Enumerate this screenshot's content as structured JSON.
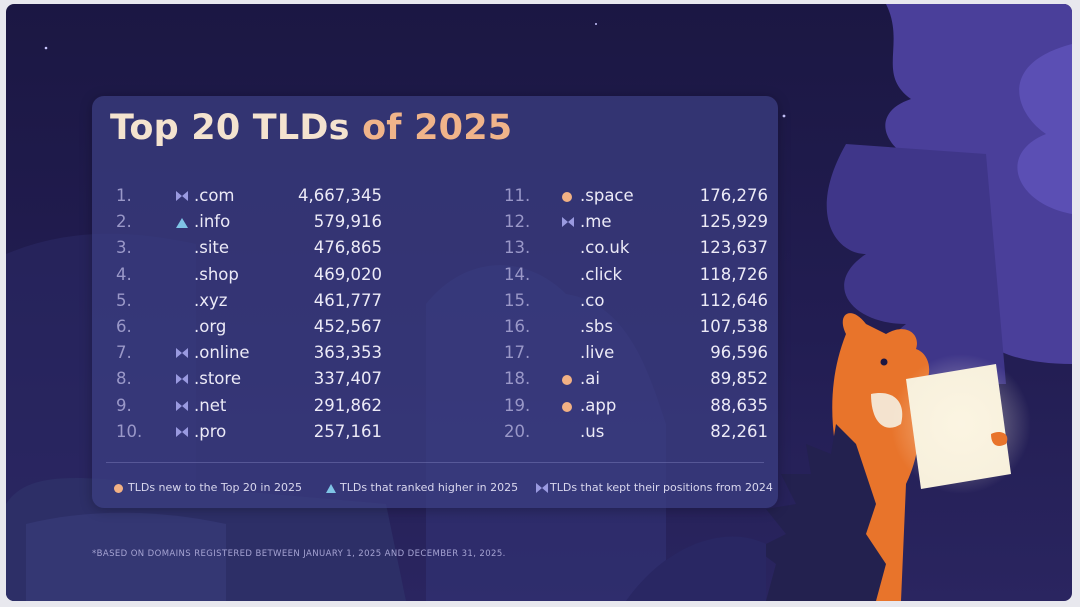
{
  "title": {
    "main": "Top 20 TLDs",
    "accent": "of 2025"
  },
  "ranking_left": [
    {
      "rank": "1.",
      "tld": ".com",
      "count": "4,667,345",
      "marker": "kept-position"
    },
    {
      "rank": "2.",
      "tld": ".info",
      "count": "579,916",
      "marker": "ranked-higher"
    },
    {
      "rank": "3.",
      "tld": ".site",
      "count": "476,865",
      "marker": "none"
    },
    {
      "rank": "4.",
      "tld": ".shop",
      "count": "469,020",
      "marker": "none"
    },
    {
      "rank": "5.",
      "tld": ".xyz",
      "count": "461,777",
      "marker": "none"
    },
    {
      "rank": "6.",
      "tld": ".org",
      "count": "452,567",
      "marker": "none"
    },
    {
      "rank": "7.",
      "tld": ".online",
      "count": "363,353",
      "marker": "kept-position"
    },
    {
      "rank": "8.",
      "tld": ".store",
      "count": "337,407",
      "marker": "kept-position"
    },
    {
      "rank": "9.",
      "tld": ".net",
      "count": "291,862",
      "marker": "kept-position"
    },
    {
      "rank": "10.",
      "tld": ".pro",
      "count": "257,161",
      "marker": "kept-position"
    }
  ],
  "ranking_right": [
    {
      "rank": "11.",
      "tld": ".space",
      "count": "176,276",
      "marker": "new"
    },
    {
      "rank": "12.",
      "tld": ".me",
      "count": "125,929",
      "marker": "kept-position"
    },
    {
      "rank": "13.",
      "tld": ".co.uk",
      "count": "123,637",
      "marker": "none"
    },
    {
      "rank": "14.",
      "tld": ".click",
      "count": "118,726",
      "marker": "none"
    },
    {
      "rank": "15.",
      "tld": ".co",
      "count": "112,646",
      "marker": "none"
    },
    {
      "rank": "16.",
      "tld": ".sbs",
      "count": "107,538",
      "marker": "none"
    },
    {
      "rank": "17.",
      "tld": ".live",
      "count": "96,596",
      "marker": "none"
    },
    {
      "rank": "18.",
      "tld": ".ai",
      "count": "89,852",
      "marker": "new"
    },
    {
      "rank": "19.",
      "tld": ".app",
      "count": "88,635",
      "marker": "new"
    },
    {
      "rank": "20.",
      "tld": ".us",
      "count": "82,261",
      "marker": "none"
    }
  ],
  "legend": {
    "new": "TLDs new to the Top 20 in 2025",
    "ranked_higher": "TLDs that ranked higher in 2025",
    "kept_position": "TLDs that kept their positions from 2024"
  },
  "footnote": "*BASED ON DOMAINS REGISTERED BETWEEN JANUARY 1, 2025 AND DECEMBER 31, 2025.",
  "colors": {
    "background": "#1b1743",
    "card": "#3c3e82",
    "title": "#f4e3cf",
    "title_accent": "#f0b48a",
    "new_marker": "#f2b184",
    "ranked_higher_marker": "#7fc4e6",
    "kept_position_marker": "#9a9ae0"
  }
}
